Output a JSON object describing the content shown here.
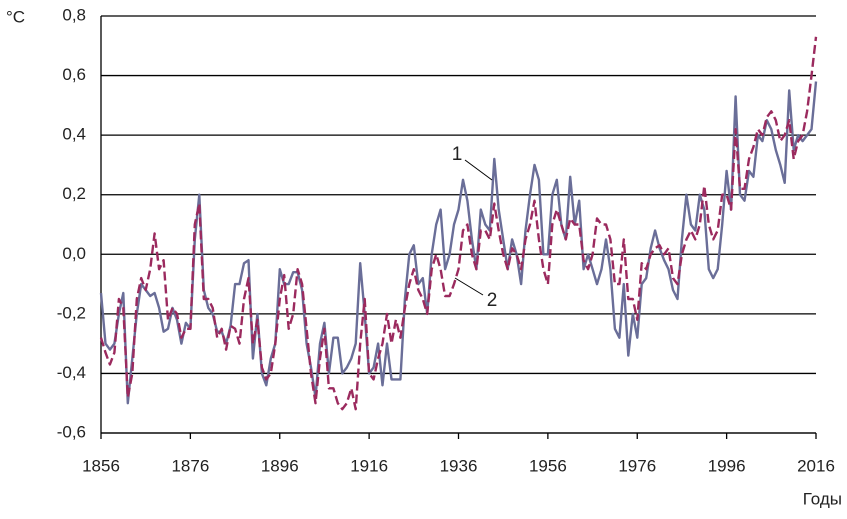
{
  "chart_data": {
    "type": "line",
    "y_label": "°C",
    "x_label": "Годы",
    "xlim": [
      1856,
      2016
    ],
    "xticks": [
      1856,
      1876,
      1896,
      1916,
      1936,
      1956,
      1976,
      1996,
      2016
    ],
    "ylim": [
      -0.6,
      0.8
    ],
    "yticks": [
      {
        "value": -0.6,
        "label": "-0,6"
      },
      {
        "value": -0.4,
        "label": "-0,4"
      },
      {
        "value": -0.2,
        "label": "-0,2"
      },
      {
        "value": 0,
        "label": "0,0"
      },
      {
        "value": 0.2,
        "label": "0,2"
      },
      {
        "value": 0.4,
        "label": "0,4"
      },
      {
        "value": 0.6,
        "label": "0,6"
      },
      {
        "value": 0.8,
        "label": "0,8"
      }
    ],
    "grid": true,
    "x": [
      1856,
      1857,
      1858,
      1859,
      1860,
      1861,
      1862,
      1863,
      1864,
      1865,
      1866,
      1867,
      1868,
      1869,
      1870,
      1871,
      1872,
      1873,
      1874,
      1875,
      1876,
      1877,
      1878,
      1879,
      1880,
      1881,
      1882,
      1883,
      1884,
      1885,
      1886,
      1887,
      1888,
      1889,
      1890,
      1891,
      1892,
      1893,
      1894,
      1895,
      1896,
      1897,
      1898,
      1899,
      1900,
      1901,
      1902,
      1903,
      1904,
      1905,
      1906,
      1907,
      1908,
      1909,
      1910,
      1911,
      1912,
      1913,
      1914,
      1915,
      1916,
      1917,
      1918,
      1919,
      1920,
      1921,
      1922,
      1923,
      1924,
      1925,
      1926,
      1927,
      1928,
      1929,
      1930,
      1931,
      1932,
      1933,
      1934,
      1935,
      1936,
      1937,
      1938,
      1939,
      1940,
      1941,
      1942,
      1943,
      1944,
      1945,
      1946,
      1947,
      1948,
      1949,
      1950,
      1951,
      1952,
      1953,
      1954,
      1955,
      1956,
      1957,
      1958,
      1959,
      1960,
      1961,
      1962,
      1963,
      1964,
      1965,
      1966,
      1967,
      1968,
      1969,
      1970,
      1971,
      1972,
      1973,
      1974,
      1975,
      1976,
      1977,
      1978,
      1979,
      1980,
      1981,
      1982,
      1983,
      1984,
      1985,
      1986,
      1987,
      1988,
      1989,
      1990,
      1991,
      1992,
      1993,
      1994,
      1995,
      1996,
      1997,
      1998,
      1999,
      2000,
      2001,
      2002,
      2003,
      2004,
      2005,
      2006,
      2007,
      2008,
      2009,
      2010,
      2011,
      2012,
      2013,
      2014,
      2015,
      2016
    ],
    "series": [
      {
        "name": "1",
        "color": "#6a6e98",
        "dash": false,
        "values": [
          -0.13,
          -0.3,
          -0.32,
          -0.3,
          -0.2,
          -0.13,
          -0.5,
          -0.35,
          -0.2,
          -0.1,
          -0.12,
          -0.14,
          -0.13,
          -0.18,
          -0.26,
          -0.25,
          -0.18,
          -0.22,
          -0.3,
          -0.23,
          -0.25,
          0.05,
          0.2,
          -0.12,
          -0.18,
          -0.2,
          -0.26,
          -0.26,
          -0.3,
          -0.24,
          -0.1,
          -0.1,
          -0.03,
          -0.02,
          -0.35,
          -0.2,
          -0.4,
          -0.44,
          -0.35,
          -0.3,
          -0.05,
          -0.1,
          -0.1,
          -0.06,
          -0.06,
          -0.12,
          -0.3,
          -0.38,
          -0.48,
          -0.3,
          -0.23,
          -0.4,
          -0.28,
          -0.28,
          -0.4,
          -0.38,
          -0.35,
          -0.3,
          -0.03,
          -0.2,
          -0.4,
          -0.38,
          -0.3,
          -0.44,
          -0.3,
          -0.42,
          -0.42,
          -0.42,
          -0.15,
          0.0,
          0.03,
          -0.1,
          -0.08,
          -0.2,
          0.0,
          0.1,
          0.15,
          -0.05,
          0.0,
          0.1,
          0.15,
          0.25,
          0.18,
          0.05,
          -0.05,
          0.15,
          0.1,
          0.08,
          0.32,
          0.15,
          0.05,
          -0.05,
          0.05,
          0.0,
          -0.1,
          0.08,
          0.2,
          0.3,
          0.25,
          0.0,
          0.0,
          0.2,
          0.25,
          0.1,
          0.05,
          0.26,
          0.1,
          0.18,
          -0.05,
          0.0,
          -0.05,
          -0.1,
          -0.05,
          0.05,
          -0.05,
          -0.25,
          -0.28,
          -0.1,
          -0.34,
          -0.2,
          -0.28,
          -0.1,
          -0.08,
          0.02,
          0.08,
          0.02,
          -0.02,
          -0.05,
          -0.12,
          -0.15,
          0.05,
          0.2,
          0.1,
          0.08,
          0.2,
          0.15,
          -0.05,
          -0.08,
          -0.05,
          0.1,
          0.28,
          0.15,
          0.53,
          0.2,
          0.18,
          0.28,
          0.26,
          0.4,
          0.38,
          0.45,
          0.42,
          0.35,
          0.3,
          0.24,
          0.55,
          0.35,
          0.4,
          0.38,
          0.4,
          0.42,
          0.58
        ]
      },
      {
        "name": "2",
        "color": "#9b2a5e",
        "dash": true,
        "values": [
          -0.28,
          -0.33,
          -0.37,
          -0.33,
          -0.15,
          -0.18,
          -0.48,
          -0.4,
          -0.15,
          -0.08,
          -0.12,
          -0.05,
          0.07,
          -0.05,
          -0.02,
          -0.22,
          -0.18,
          -0.2,
          -0.28,
          -0.25,
          -0.25,
          0.1,
          0.17,
          -0.15,
          -0.15,
          -0.18,
          -0.28,
          -0.25,
          -0.32,
          -0.24,
          -0.25,
          -0.3,
          -0.15,
          -0.08,
          -0.3,
          -0.22,
          -0.38,
          -0.42,
          -0.4,
          -0.3,
          -0.15,
          -0.07,
          -0.25,
          -0.2,
          -0.05,
          -0.1,
          -0.25,
          -0.4,
          -0.5,
          -0.35,
          -0.25,
          -0.45,
          -0.45,
          -0.5,
          -0.52,
          -0.5,
          -0.45,
          -0.52,
          -0.3,
          -0.15,
          -0.4,
          -0.42,
          -0.35,
          -0.3,
          -0.2,
          -0.3,
          -0.22,
          -0.28,
          -0.18,
          -0.1,
          -0.05,
          -0.12,
          -0.15,
          -0.2,
          -0.05,
          0.0,
          -0.05,
          -0.14,
          -0.14,
          -0.1,
          -0.05,
          0.08,
          0.1,
          0.0,
          -0.05,
          0.08,
          0.08,
          0.05,
          0.17,
          0.08,
          0.0,
          -0.05,
          0.02,
          0.0,
          -0.05,
          0.05,
          0.1,
          0.18,
          0.05,
          -0.05,
          -0.1,
          0.1,
          0.15,
          0.1,
          0.05,
          0.12,
          0.1,
          0.1,
          -0.02,
          -0.05,
          0.0,
          0.12,
          0.1,
          0.1,
          0.05,
          -0.1,
          -0.1,
          0.05,
          -0.15,
          -0.15,
          -0.22,
          -0.03,
          -0.05,
          0.0,
          0.02,
          0.03,
          0.0,
          0.02,
          -0.08,
          -0.1,
          0.0,
          0.05,
          0.08,
          0.05,
          0.1,
          0.23,
          0.1,
          0.05,
          0.08,
          0.2,
          0.2,
          0.15,
          0.42,
          0.22,
          0.22,
          0.32,
          0.36,
          0.42,
          0.4,
          0.46,
          0.48,
          0.45,
          0.38,
          0.4,
          0.45,
          0.32,
          0.38,
          0.4,
          0.48,
          0.6,
          0.73
        ]
      }
    ]
  }
}
